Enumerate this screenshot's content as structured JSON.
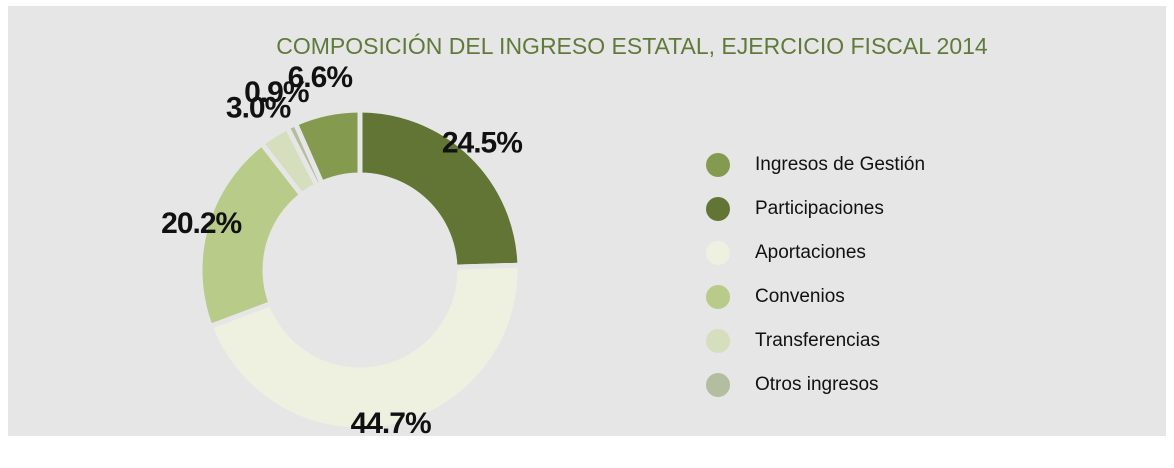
{
  "chart_data": {
    "type": "pie",
    "donut": true,
    "title": "COMPOSICIÓN DEL INGRESO ESTATAL, EJERCICIO FISCAL 2014",
    "categories": [
      "Ingresos de Gestión",
      "Participaciones",
      "Aportaciones",
      "Convenios",
      "Transferencias",
      "Otros ingresos"
    ],
    "values": [
      6.6,
      24.5,
      44.7,
      20.2,
      3.0,
      0.9
    ],
    "value_labels": [
      "6.6%",
      "24.5%",
      "44.7%",
      "20.2%",
      "3.0%",
      "0.9%"
    ],
    "colors": [
      "#849a4e",
      "#627535",
      "#eef0e0",
      "#b8cb88",
      "#d5debd",
      "#b3bea0"
    ],
    "legend": "right"
  }
}
